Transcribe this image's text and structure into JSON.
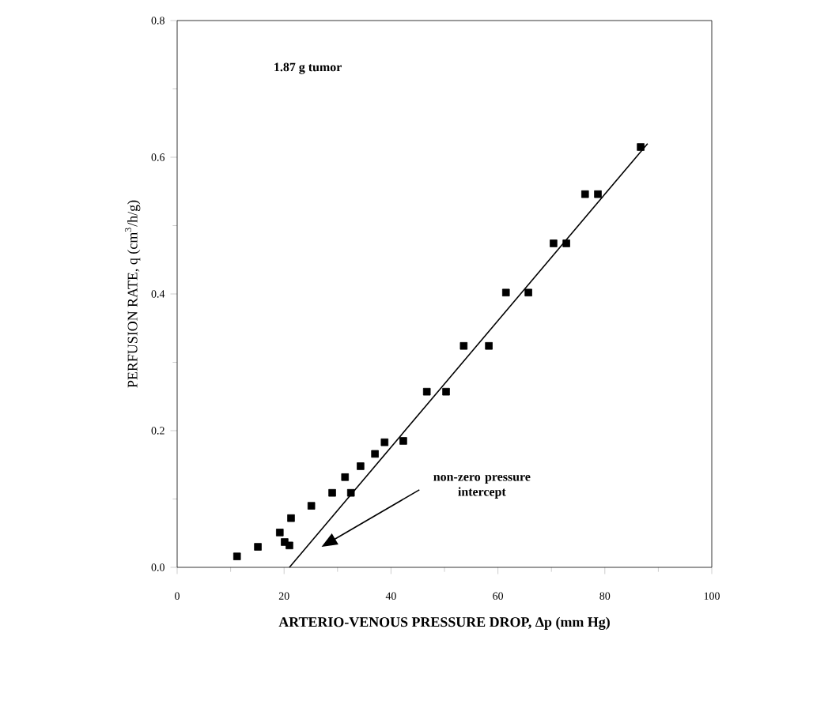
{
  "chart_data": {
    "type": "scatter",
    "xlabel": "ARTERIO-VENOUS PRESSURE DROP, Δp (mm Hg)",
    "ylabel": "PERFUSION RATE, q (cm$^{3}$/h/g)",
    "annotations": [
      "1.87 g tumor",
      "non-zero pressure intercept"
    ],
    "xlim": [
      0,
      100
    ],
    "xticks": [
      0,
      20,
      40,
      60,
      80,
      100
    ],
    "ylim": [
      0,
      0.8
    ],
    "yticks": [
      {
        "value": 0,
        "label": "0.0"
      },
      {
        "value": 0.2,
        "label": "0.2"
      },
      {
        "value": 0.4,
        "label": "0.4"
      },
      {
        "value": 0.6,
        "label": "0.6"
      },
      {
        "value": 0.8,
        "label": "0.8"
      }
    ],
    "grid": false,
    "marker": "square",
    "series": [
      {
        "color": "#000000",
        "x": [
          11.2,
          15.1,
          19.2,
          20.1,
          21.3,
          21.0,
          25.1,
          29.0,
          31.4,
          32.5,
          34.3,
          37.0,
          38.8,
          42.3,
          46.7,
          50.3,
          53.6,
          58.3,
          61.5,
          65.7,
          70.4,
          72.8,
          76.3,
          78.7,
          86.7
        ],
        "values": [
          0.016,
          0.03,
          0.051,
          0.037,
          0.072,
          0.032,
          0.09,
          0.109,
          0.132,
          0.109,
          0.148,
          0.166,
          0.183,
          0.185,
          0.257,
          0.257,
          0.324,
          0.324,
          0.402,
          0.402,
          0.474,
          0.474,
          0.546,
          0.546,
          0.615
        ]
      },
      {
        "type": "line",
        "marker": "none",
        "color": "#000000",
        "x": [
          21,
          88
        ],
        "values": [
          0,
          0.62
        ]
      }
    ]
  }
}
